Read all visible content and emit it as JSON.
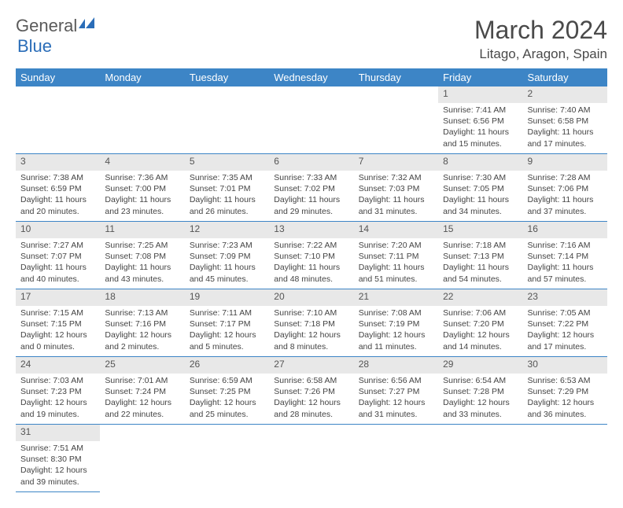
{
  "logo": {
    "part1": "General",
    "part2": "Blue"
  },
  "title": "March 2024",
  "location": "Litago, Aragon, Spain",
  "colors": {
    "header_bg": "#3d85c6",
    "header_text": "#ffffff",
    "daynum_bg": "#e8e8e8",
    "border": "#3d85c6",
    "logo_gray": "#5a5a5a",
    "logo_blue": "#2a6db8"
  },
  "weekdays": [
    "Sunday",
    "Monday",
    "Tuesday",
    "Wednesday",
    "Thursday",
    "Friday",
    "Saturday"
  ],
  "weeks": [
    {
      "nums": [
        "",
        "",
        "",
        "",
        "",
        "1",
        "2"
      ],
      "cells": [
        "",
        "",
        "",
        "",
        "",
        "Sunrise: 7:41 AM\nSunset: 6:56 PM\nDaylight: 11 hours and 15 minutes.",
        "Sunrise: 7:40 AM\nSunset: 6:58 PM\nDaylight: 11 hours and 17 minutes."
      ]
    },
    {
      "nums": [
        "3",
        "4",
        "5",
        "6",
        "7",
        "8",
        "9"
      ],
      "cells": [
        "Sunrise: 7:38 AM\nSunset: 6:59 PM\nDaylight: 11 hours and 20 minutes.",
        "Sunrise: 7:36 AM\nSunset: 7:00 PM\nDaylight: 11 hours and 23 minutes.",
        "Sunrise: 7:35 AM\nSunset: 7:01 PM\nDaylight: 11 hours and 26 minutes.",
        "Sunrise: 7:33 AM\nSunset: 7:02 PM\nDaylight: 11 hours and 29 minutes.",
        "Sunrise: 7:32 AM\nSunset: 7:03 PM\nDaylight: 11 hours and 31 minutes.",
        "Sunrise: 7:30 AM\nSunset: 7:05 PM\nDaylight: 11 hours and 34 minutes.",
        "Sunrise: 7:28 AM\nSunset: 7:06 PM\nDaylight: 11 hours and 37 minutes."
      ]
    },
    {
      "nums": [
        "10",
        "11",
        "12",
        "13",
        "14",
        "15",
        "16"
      ],
      "cells": [
        "Sunrise: 7:27 AM\nSunset: 7:07 PM\nDaylight: 11 hours and 40 minutes.",
        "Sunrise: 7:25 AM\nSunset: 7:08 PM\nDaylight: 11 hours and 43 minutes.",
        "Sunrise: 7:23 AM\nSunset: 7:09 PM\nDaylight: 11 hours and 45 minutes.",
        "Sunrise: 7:22 AM\nSunset: 7:10 PM\nDaylight: 11 hours and 48 minutes.",
        "Sunrise: 7:20 AM\nSunset: 7:11 PM\nDaylight: 11 hours and 51 minutes.",
        "Sunrise: 7:18 AM\nSunset: 7:13 PM\nDaylight: 11 hours and 54 minutes.",
        "Sunrise: 7:16 AM\nSunset: 7:14 PM\nDaylight: 11 hours and 57 minutes."
      ]
    },
    {
      "nums": [
        "17",
        "18",
        "19",
        "20",
        "21",
        "22",
        "23"
      ],
      "cells": [
        "Sunrise: 7:15 AM\nSunset: 7:15 PM\nDaylight: 12 hours and 0 minutes.",
        "Sunrise: 7:13 AM\nSunset: 7:16 PM\nDaylight: 12 hours and 2 minutes.",
        "Sunrise: 7:11 AM\nSunset: 7:17 PM\nDaylight: 12 hours and 5 minutes.",
        "Sunrise: 7:10 AM\nSunset: 7:18 PM\nDaylight: 12 hours and 8 minutes.",
        "Sunrise: 7:08 AM\nSunset: 7:19 PM\nDaylight: 12 hours and 11 minutes.",
        "Sunrise: 7:06 AM\nSunset: 7:20 PM\nDaylight: 12 hours and 14 minutes.",
        "Sunrise: 7:05 AM\nSunset: 7:22 PM\nDaylight: 12 hours and 17 minutes."
      ]
    },
    {
      "nums": [
        "24",
        "25",
        "26",
        "27",
        "28",
        "29",
        "30"
      ],
      "cells": [
        "Sunrise: 7:03 AM\nSunset: 7:23 PM\nDaylight: 12 hours and 19 minutes.",
        "Sunrise: 7:01 AM\nSunset: 7:24 PM\nDaylight: 12 hours and 22 minutes.",
        "Sunrise: 6:59 AM\nSunset: 7:25 PM\nDaylight: 12 hours and 25 minutes.",
        "Sunrise: 6:58 AM\nSunset: 7:26 PM\nDaylight: 12 hours and 28 minutes.",
        "Sunrise: 6:56 AM\nSunset: 7:27 PM\nDaylight: 12 hours and 31 minutes.",
        "Sunrise: 6:54 AM\nSunset: 7:28 PM\nDaylight: 12 hours and 33 minutes.",
        "Sunrise: 6:53 AM\nSunset: 7:29 PM\nDaylight: 12 hours and 36 minutes."
      ]
    },
    {
      "nums": [
        "31",
        "",
        "",
        "",
        "",
        "",
        ""
      ],
      "cells": [
        "Sunrise: 7:51 AM\nSunset: 8:30 PM\nDaylight: 12 hours and 39 minutes.",
        "",
        "",
        "",
        "",
        "",
        ""
      ]
    }
  ]
}
